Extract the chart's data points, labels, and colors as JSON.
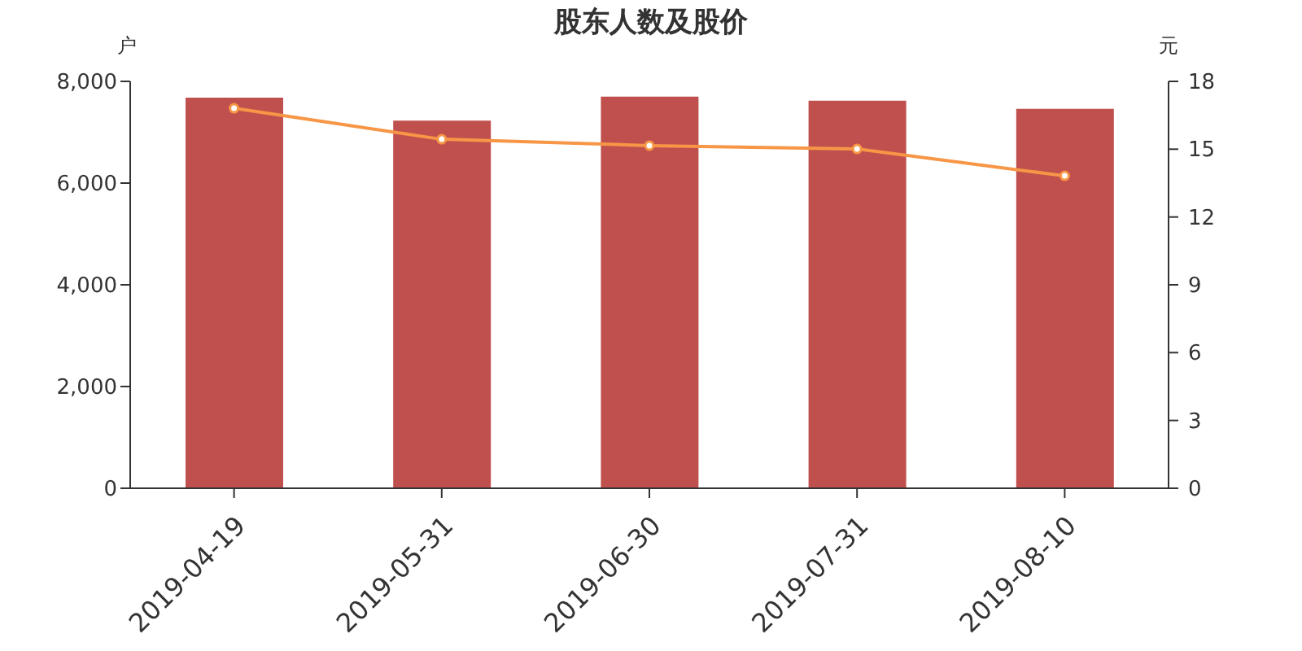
{
  "chart_data": {
    "type": "bar",
    "title": "股东人数及股价",
    "ylabel": "户",
    "y2label": "元",
    "categories": [
      "2019-04-19",
      "2019-05-31",
      "2019-06-30",
      "2019-07-31",
      "2019-08-10"
    ],
    "series": [
      {
        "color": "#c0504d",
        "values": [
          7680,
          7230,
          7700,
          7620,
          7460
        ]
      },
      {
        "type": "line",
        "axis": "y2",
        "color": "#f79646",
        "values": [
          16.81,
          15.44,
          15.16,
          15.01,
          13.82
        ]
      }
    ],
    "ylim": [
      0,
      8000
    ],
    "yticks": [
      {
        "value": 0,
        "label": "0"
      },
      {
        "value": 2000,
        "label": "2,000"
      },
      {
        "value": 4000,
        "label": "4,000"
      },
      {
        "value": 6000,
        "label": "6,000"
      },
      {
        "value": 8000,
        "label": "8,000"
      }
    ],
    "y2lim": [
      0,
      18
    ],
    "y2ticks": [
      0,
      3,
      6,
      9,
      12,
      15,
      18
    ],
    "marker": "circle",
    "line_style": "solid"
  }
}
